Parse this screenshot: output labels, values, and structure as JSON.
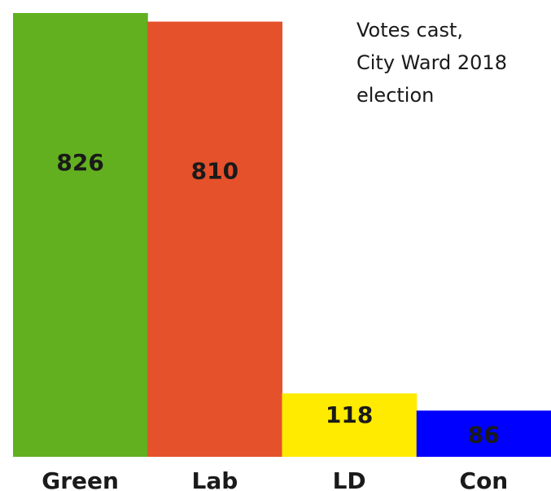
{
  "chart_data": {
    "type": "bar",
    "title": "Votes cast, City Ward 2018 election",
    "title_lines": [
      "Votes cast,",
      "City Ward 2018",
      "election"
    ],
    "categories": [
      "Green",
      "Lab",
      "LD",
      "Con"
    ],
    "values": [
      826,
      810,
      118,
      86
    ],
    "colors": [
      "#62b01f",
      "#e5512b",
      "#ffeb00",
      "#0000ff"
    ],
    "xlabel": "",
    "ylabel": "",
    "ylim": [
      0,
      826
    ],
    "grid": false,
    "legend": "none"
  }
}
